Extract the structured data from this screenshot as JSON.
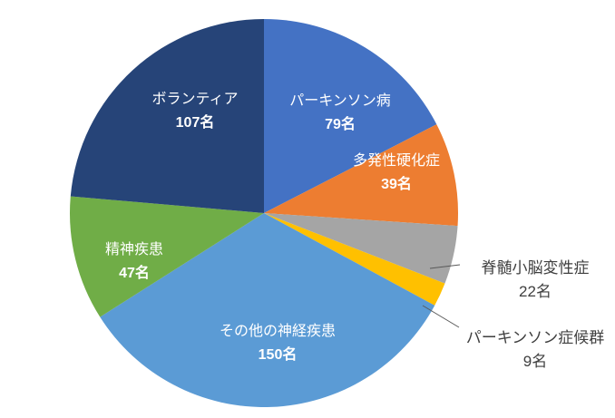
{
  "chart_data": {
    "type": "pie",
    "unit": "名",
    "start_angle_deg": 0,
    "direction": "clockwise",
    "legend": "none",
    "slices": [
      {
        "label": "パーキンソン病",
        "value": 79,
        "value_label": "79名",
        "color": "#4472C4",
        "label_placement": "inside"
      },
      {
        "label": "多発性硬化症",
        "value": 39,
        "value_label": "39名",
        "color": "#ED7D31",
        "label_placement": "inside"
      },
      {
        "label": "脊髄小脳変性症",
        "value": 22,
        "value_label": "22名",
        "color": "#A5A5A5",
        "label_placement": "outside"
      },
      {
        "label": "パーキンソン症候群",
        "value": 9,
        "value_label": "9名",
        "color": "#FFC000",
        "label_placement": "outside"
      },
      {
        "label": "その他の神経疾患",
        "value": 150,
        "value_label": "150名",
        "color": "#5B9BD5",
        "label_placement": "inside"
      },
      {
        "label": "精神疾患",
        "value": 47,
        "value_label": "47名",
        "color": "#70AD47",
        "label_placement": "inside"
      },
      {
        "label": "ボランティア",
        "value": 107,
        "value_label": "107名",
        "color": "#264478",
        "label_placement": "inside"
      }
    ]
  }
}
